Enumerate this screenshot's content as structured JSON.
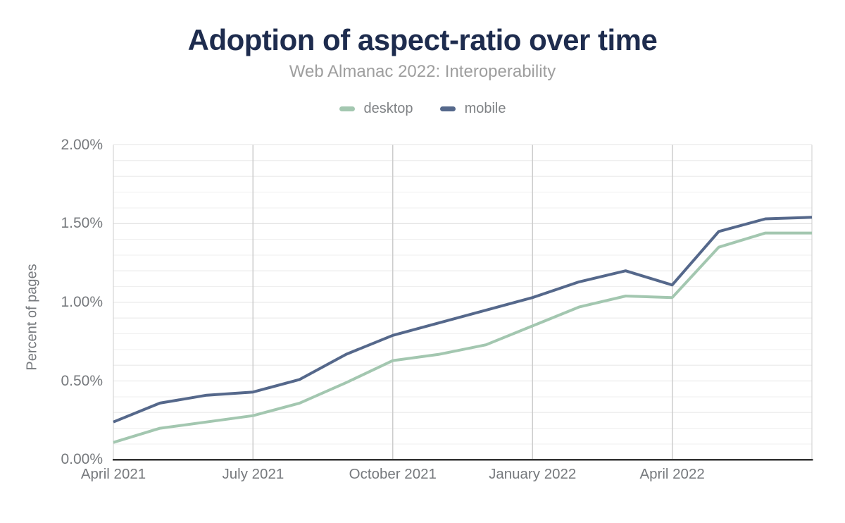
{
  "header": {
    "title": "Adoption of aspect-ratio over time",
    "subtitle": "Web Almanac 2022: Interoperability"
  },
  "chart_data": {
    "type": "line",
    "title": "Adoption of aspect-ratio over time",
    "subtitle": "Web Almanac 2022: Interoperability",
    "xlabel": "",
    "ylabel": "Percent of pages",
    "legend_position": "top",
    "grid": "horizontal minor lines every 0.1%, vertical lines at quarterly ticks",
    "ylim": [
      0,
      2
    ],
    "y_minor_step": 0.1,
    "x": [
      "April 2021",
      "May 2021",
      "June 2021",
      "July 2021",
      "August 2021",
      "September 2021",
      "October 2021",
      "November 2021",
      "December 2021",
      "January 2022",
      "February 2022",
      "March 2022",
      "April 2022",
      "May 2022",
      "June 2022",
      "July 2022"
    ],
    "series": [
      {
        "name": "desktop",
        "color": "#a3c7b0",
        "values": [
          0.11,
          0.2,
          0.24,
          0.28,
          0.36,
          0.49,
          0.63,
          0.67,
          0.73,
          0.85,
          0.97,
          1.04,
          1.03,
          1.35,
          1.44,
          1.44
        ]
      },
      {
        "name": "mobile",
        "color": "#55688b",
        "values": [
          0.24,
          0.36,
          0.41,
          0.43,
          0.51,
          0.67,
          0.79,
          0.87,
          0.95,
          1.03,
          1.13,
          1.2,
          1.11,
          1.45,
          1.53,
          1.54
        ]
      }
    ],
    "y_ticks": {
      "values": [
        0,
        0.5,
        1.0,
        1.5,
        2.0
      ],
      "labels": [
        "0.00%",
        "0.50%",
        "1.00%",
        "1.50%",
        "2.00%"
      ]
    },
    "x_ticks": {
      "indices": [
        0,
        3,
        6,
        9,
        12
      ],
      "labels": [
        "April 2021",
        "July 2021",
        "October 2021",
        "January 2022",
        "April 2022"
      ]
    },
    "vertical_line_indices": [
      0,
      3,
      6,
      9,
      12,
      15
    ],
    "colors": {
      "title_text": "#1e2c4e",
      "subtitle_text": "#9e9e9e",
      "axis_text": "#76797d",
      "legend_text": "#7f8285",
      "gridline_minor": "#efefef",
      "gridline_major": "#e4e4e4",
      "gridline_vertical": "#cccccc",
      "axis_line": "#333333",
      "background": "#ffffff"
    }
  }
}
